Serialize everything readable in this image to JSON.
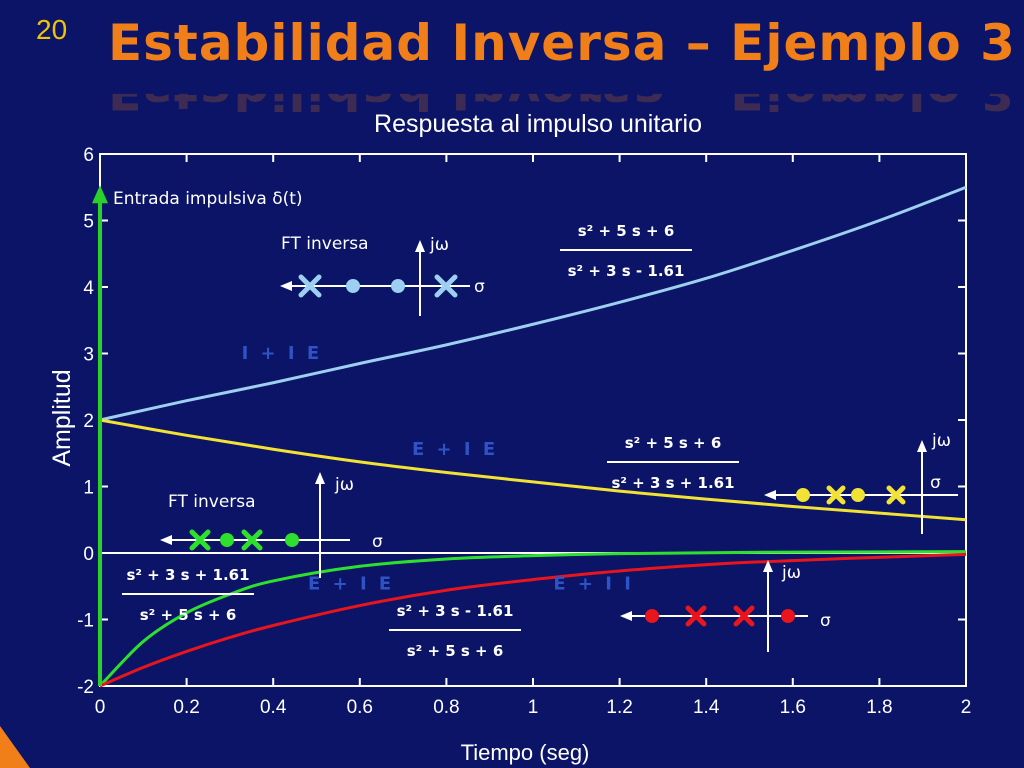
{
  "slide_number": "20",
  "slide_title": "Estabilidad Inversa – Ejemplo 3",
  "colors": {
    "background": "#0b1466",
    "title": "#f07f1a",
    "slide_number": "#f2c400",
    "curve_iie": "#9ccff0",
    "curve_eie_yellow": "#f2e234",
    "curve_eie_green": "#2ee02e",
    "curve_eii": "#e8161c",
    "impulse": "#2bd12b"
  },
  "chart_data": {
    "type": "line",
    "title": "Respuesta al impulso unitario",
    "xlabel": "Tiempo (seg)",
    "ylabel": "Amplitud",
    "xlim": [
      0,
      2
    ],
    "ylim": [
      -2,
      6
    ],
    "xticks": [
      "0",
      "0.2",
      "0.4",
      "0.6",
      "0.8",
      "1",
      "1.2",
      "1.4",
      "1.6",
      "1.8",
      "2"
    ],
    "yticks": [
      "-2",
      "-1",
      "0",
      "1",
      "2",
      "3",
      "4",
      "5",
      "6"
    ],
    "grid": false,
    "series": [
      {
        "name": "I + I E",
        "color": "#9ccff0",
        "x": [
          0,
          0.2,
          0.4,
          0.6,
          0.8,
          1.0,
          1.2,
          1.4,
          1.6,
          1.8,
          2.0
        ],
        "y": [
          2.0,
          2.29,
          2.56,
          2.85,
          3.13,
          3.44,
          3.77,
          4.13,
          4.55,
          5.0,
          5.5
        ]
      },
      {
        "name": "E + I E",
        "color": "#f2e234",
        "x": [
          0,
          0.2,
          0.4,
          0.6,
          0.8,
          1.0,
          1.2,
          1.4,
          1.6,
          1.8,
          2.0
        ],
        "y": [
          2.0,
          1.77,
          1.56,
          1.37,
          1.21,
          1.07,
          0.93,
          0.81,
          0.7,
          0.6,
          0.5
        ]
      },
      {
        "name": "E + I E",
        "color": "#2ee02e",
        "x": [
          0,
          0.1,
          0.2,
          0.3,
          0.4,
          0.6,
          0.8,
          1.0,
          1.2,
          1.5,
          2.0
        ],
        "y": [
          -2.0,
          -1.33,
          -0.9,
          -0.62,
          -0.42,
          -0.2,
          -0.09,
          -0.04,
          -0.01,
          0.01,
          0.02
        ]
      },
      {
        "name": "E + I I",
        "color": "#e8161c",
        "x": [
          0,
          0.1,
          0.2,
          0.3,
          0.4,
          0.6,
          0.8,
          1.0,
          1.2,
          1.5,
          2.0
        ],
        "y": [
          -2.0,
          -1.72,
          -1.48,
          -1.27,
          -1.09,
          -0.79,
          -0.56,
          -0.4,
          -0.27,
          -0.14,
          -0.02
        ]
      }
    ],
    "impulse": {
      "label": "Entrada impulsiva δ(t)",
      "x": 0,
      "y_from": -2,
      "y_to": 5.5
    },
    "region_labels": [
      {
        "text": "I + I E",
        "x": 0.42,
        "y": 2.92,
        "color": "#2f52c4"
      },
      {
        "text": "E + I E",
        "x": 0.82,
        "y": 1.47,
        "color": "#2f52c4"
      },
      {
        "text": "E + I E",
        "x": 0.58,
        "y": -0.55,
        "color": "#2f52c4"
      },
      {
        "text": "E + I I",
        "x": 1.14,
        "y": -0.55,
        "color": "#2f52c4"
      }
    ],
    "annotations": {
      "ft_inversa_1": "FT inversa",
      "ft_inversa_2": "FT inversa",
      "jw": "jω",
      "sigma": "σ",
      "tf1_num": "s² + 5 s + 6",
      "tf1_den": "s² + 3 s - 1.61",
      "tf2_num": "s² + 5 s + 6",
      "tf2_den": "s² + 3 s + 1.61",
      "tf3_num": "s² + 3 s + 1.61",
      "tf3_den": "s² + 5 s + 6",
      "tf4_num": "s² + 3 s - 1.61",
      "tf4_den": "s² + 5 s + 6"
    }
  }
}
